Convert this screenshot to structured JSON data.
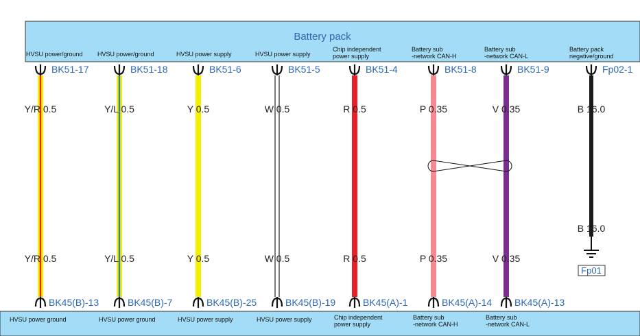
{
  "top_box": {
    "title": "Battery pack",
    "fill": "#a2dcf7"
  },
  "bottom_box": {
    "fill": "#a2dcf7"
  },
  "colors": {
    "connector_label": "#2d68b5",
    "wire_label": "#222222"
  },
  "wires": [
    {
      "id": "w1",
      "top_desc": [
        "HVSU power/ground"
      ],
      "top_pin": "BK51-17",
      "wire_label_top": "Y/R 0.5",
      "wire_label_bottom": "Y/R 0.5",
      "bottom_pin": "BK45(B)-13",
      "bottom_desc": [
        "HVSU power ground"
      ],
      "base_color": "#f4f000",
      "stripe_color": "#e0281e",
      "outline_only": false
    },
    {
      "id": "w2",
      "top_desc": [
        "HVSU power/ground"
      ],
      "top_pin": "BK51-18",
      "wire_label_top": "Y/L 0.5",
      "wire_label_bottom": "Y/L 0.5",
      "bottom_pin": "BK45(B)-7",
      "bottom_desc": [
        "HVSU power ground"
      ],
      "base_color": "#f4f000",
      "stripe_color": "#3a78c8",
      "outline_only": false
    },
    {
      "id": "w3",
      "top_desc": [
        "HVSU power supply"
      ],
      "top_pin": "BK51-6",
      "wire_label_top": "Y 0.5",
      "wire_label_bottom": "Y 0.5",
      "bottom_pin": "BK45(B)-25",
      "bottom_desc": [
        "HVSU power supply"
      ],
      "base_color": "#f4f000",
      "stripe_color": null,
      "outline_only": false
    },
    {
      "id": "w4",
      "top_desc": [
        "HVSU power supply"
      ],
      "top_pin": "BK51-5",
      "wire_label_top": "W 0.5",
      "wire_label_bottom": "W 0.5",
      "bottom_pin": "BK45(B)-19",
      "bottom_desc": [
        "HVSU power supply"
      ],
      "base_color": "#ffffff",
      "stripe_color": null,
      "outline_only": true
    },
    {
      "id": "w5",
      "top_desc": [
        "Chip independent",
        "power supply"
      ],
      "top_pin": "BK51-4",
      "wire_label_top": "R 0.5",
      "wire_label_bottom": "R 0.5",
      "bottom_pin": "BK45(A)-1",
      "bottom_desc": [
        "Chip independent",
        "power supply"
      ],
      "base_color": "#e8202a",
      "stripe_color": null,
      "outline_only": false
    },
    {
      "id": "w6",
      "top_desc": [
        "Battery sub",
        "-network CAN-H"
      ],
      "top_pin": "BK51-8",
      "wire_label_top": "P 0.35",
      "wire_label_bottom": "P 0.35",
      "bottom_pin": "BK45(A)-14",
      "bottom_desc": [
        "Battery sub",
        "-network CAN-H"
      ],
      "base_color": "#f58a93",
      "stripe_color": null,
      "outline_only": false
    },
    {
      "id": "w7",
      "top_desc": [
        "Battery sub",
        "-network CAN-L"
      ],
      "top_pin": "BK51-9",
      "wire_label_top": "V 0.35",
      "wire_label_bottom": "V 0.35",
      "bottom_pin": "BK45(A)-13",
      "bottom_desc": [
        "Battery sub",
        "-network CAN-L"
      ],
      "base_color": "#7a2f8f",
      "stripe_color": null,
      "outline_only": false
    },
    {
      "id": "w8",
      "top_desc": [
        "Battery pack",
        "negative/ground"
      ],
      "top_pin": "Fp02-1",
      "wire_label_top": "B 16.0",
      "wire_label_bottom": "B 16.0",
      "bottom_pin": null,
      "bottom_desc": [],
      "base_color": "#1a1a1a",
      "stripe_color": null,
      "outline_only": false,
      "ground_label": "Fp01"
    }
  ]
}
